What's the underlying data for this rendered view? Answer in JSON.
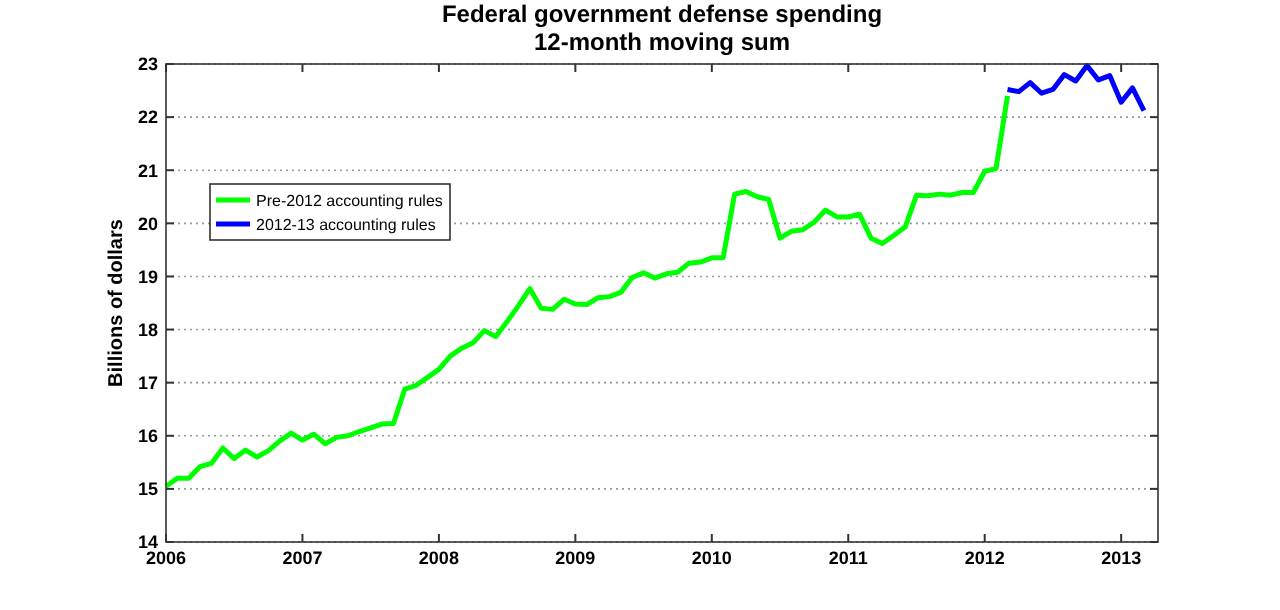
{
  "chart_data": {
    "type": "line",
    "title": "Federal government defense spending",
    "subtitle": "12-month moving sum",
    "ylabel": "Billions of dollars",
    "xlim": [
      2006,
      2013.27
    ],
    "xticks": [
      2006,
      2007,
      2008,
      2009,
      2010,
      2011,
      2012,
      2013
    ],
    "ylim": [
      14,
      23
    ],
    "yticks": [
      14,
      15,
      16,
      17,
      18,
      19,
      20,
      21,
      22,
      23
    ],
    "grid": "y",
    "legend": "top left",
    "series": [
      {
        "name": "Pre-2012 accounting rules",
        "color": "#00ff00",
        "x": [
          2006,
          2006.083,
          2006.167,
          2006.25,
          2006.333,
          2006.417,
          2006.5,
          2006.583,
          2006.667,
          2006.75,
          2006.833,
          2006.917,
          2007,
          2007.083,
          2007.167,
          2007.25,
          2007.333,
          2007.417,
          2007.5,
          2007.583,
          2007.667,
          2007.75,
          2007.833,
          2007.917,
          2008,
          2008.083,
          2008.167,
          2008.25,
          2008.333,
          2008.417,
          2008.5,
          2008.583,
          2008.667,
          2008.75,
          2008.833,
          2008.917,
          2009,
          2009.083,
          2009.167,
          2009.25,
          2009.333,
          2009.417,
          2009.5,
          2009.583,
          2009.667,
          2009.75,
          2009.833,
          2009.917,
          2010,
          2010.083,
          2010.167,
          2010.25,
          2010.333,
          2010.417,
          2010.5,
          2010.583,
          2010.667,
          2010.75,
          2010.833,
          2010.917,
          2011,
          2011.083,
          2011.167,
          2011.25,
          2011.333,
          2011.417,
          2011.5,
          2011.583,
          2011.667,
          2011.75,
          2011.833,
          2011.917,
          2012,
          2012.083,
          2012.167
        ],
        "values": [
          15.05,
          15.2,
          15.2,
          15.42,
          15.48,
          15.77,
          15.57,
          15.73,
          15.6,
          15.72,
          15.9,
          16.05,
          15.92,
          16.03,
          15.85,
          15.97,
          16.0,
          16.08,
          16.15,
          16.22,
          16.23,
          16.88,
          16.95,
          17.1,
          17.25,
          17.5,
          17.65,
          17.75,
          17.98,
          17.87,
          18.15,
          18.45,
          18.77,
          18.4,
          18.38,
          18.57,
          18.48,
          18.47,
          18.6,
          18.62,
          18.7,
          18.98,
          19.07,
          18.97,
          19.05,
          19.08,
          19.25,
          19.27,
          19.35,
          19.35,
          20.55,
          20.6,
          20.5,
          20.45,
          19.72,
          19.85,
          19.88,
          20.02,
          20.25,
          20.12,
          20.12,
          20.17,
          19.72,
          19.62,
          19.77,
          19.93,
          20.53,
          20.52,
          20.55,
          20.53,
          20.58,
          20.58,
          20.98,
          21.03,
          22.4
        ]
      },
      {
        "name": "2012-13 accounting rules",
        "color": "#0000ff",
        "x": [
          2012.167,
          2012.25,
          2012.333,
          2012.417,
          2012.5,
          2012.583,
          2012.667,
          2012.75,
          2012.833,
          2012.917,
          2013,
          2013.083,
          2013.167
        ],
        "values": [
          22.52,
          22.48,
          22.65,
          22.45,
          22.52,
          22.8,
          22.68,
          22.97,
          22.7,
          22.78,
          22.28,
          22.55,
          22.12
        ]
      }
    ]
  }
}
